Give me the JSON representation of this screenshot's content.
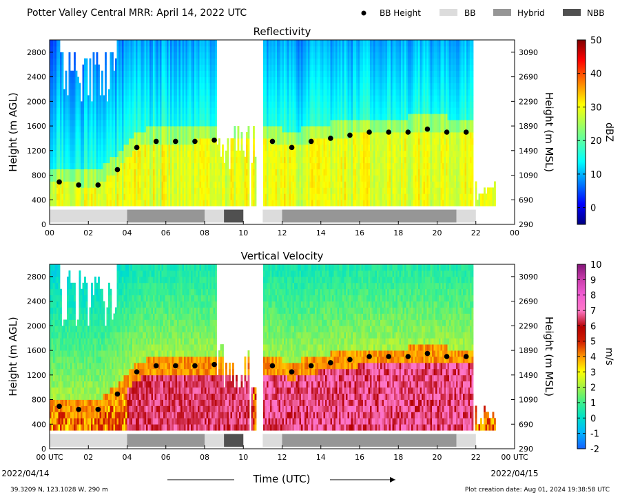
{
  "header": {
    "title": "Potter Valley Central MRR:  April 14, 2022 UTC",
    "legend": [
      {
        "label": "BB Height",
        "kind": "dot",
        "color": "#000000"
      },
      {
        "label": "BB",
        "kind": "box",
        "color": "#dcdcdc"
      },
      {
        "label": "Hybrid",
        "kind": "box",
        "color": "#969696"
      },
      {
        "label": "NBB",
        "kind": "box",
        "color": "#505050"
      }
    ]
  },
  "footer": {
    "xlabel": "Time (UTC)",
    "start_date": "2022/04/14",
    "end_date": "2022/04/15",
    "location": "39.3209 N, 123.1028 W, 290 m",
    "creation": "Plot creation date: Aug 01, 2024 19:38:58 UTC"
  },
  "chart_data": [
    {
      "type": "heatmap",
      "title": "Reflectivity",
      "ylabel": "Height (m AGL)",
      "ylabel_right": "Height (m MSL)",
      "xlim": [
        0,
        24
      ],
      "ylim": [
        0,
        3000
      ],
      "x_ticks": [
        "00",
        "02",
        "04",
        "06",
        "08",
        "10",
        "12",
        "14",
        "16",
        "18",
        "20",
        "22",
        "00"
      ],
      "y_ticks": [
        0,
        400,
        800,
        1200,
        1600,
        2000,
        2400,
        2800
      ],
      "y_ticks_right": [
        290,
        690,
        1090,
        1490,
        1890,
        2290,
        2690,
        3090
      ],
      "colorbar": {
        "label": "dBZ",
        "min": -5,
        "max": 50,
        "ticks": [
          0,
          10,
          20,
          30,
          40,
          50
        ],
        "colormap": "jet"
      },
      "bb_height": {
        "x": [
          0.5,
          1.5,
          2.5,
          3.5,
          4.5,
          5.5,
          6.5,
          7.5,
          8.5,
          11.5,
          12.5,
          13.5,
          14.5,
          15.5,
          16.5,
          17.5,
          18.5,
          19.5,
          20.5,
          21.5
        ],
        "y": [
          690,
          640,
          640,
          890,
          1250,
          1350,
          1350,
          1350,
          1370,
          1350,
          1250,
          1350,
          1400,
          1450,
          1500,
          1500,
          1500,
          1550,
          1500,
          1500
        ]
      },
      "bb_type": [
        {
          "type": "BB",
          "start": 0.0,
          "end": 4.0
        },
        {
          "type": "Hybrid",
          "start": 4.0,
          "end": 8.0
        },
        {
          "type": "BB",
          "start": 8.0,
          "end": 9.0
        },
        {
          "type": "NBB",
          "start": 9.0,
          "end": 10.0
        },
        {
          "type": "BB",
          "start": 11.0,
          "end": 12.0
        },
        {
          "type": "Hybrid",
          "start": 12.0,
          "end": 21.0
        },
        {
          "type": "BB",
          "start": 21.0,
          "end": 22.0
        }
      ],
      "data_spans": [
        [
          0.0,
          10.3
        ],
        [
          10.4,
          10.7
        ],
        [
          11.0,
          21.9
        ],
        [
          22.0,
          23.0
        ]
      ]
    },
    {
      "type": "heatmap",
      "title": "Vertical Velocity",
      "ylabel": "Height (m AGL)",
      "ylabel_right": "Height (m MSL)",
      "xlim": [
        0,
        24
      ],
      "ylim": [
        0,
        3000
      ],
      "x_ticks": [
        "00 UTC",
        "02",
        "04",
        "06",
        "08",
        "10",
        "12",
        "14",
        "16",
        "18",
        "20",
        "22",
        "00 UTC"
      ],
      "y_ticks": [
        0,
        400,
        800,
        1200,
        1600,
        2000,
        2400,
        2800
      ],
      "y_ticks_right": [
        290,
        690,
        1090,
        1490,
        1890,
        2290,
        2690,
        3090
      ],
      "colorbar": {
        "label": "m/s",
        "min": -2,
        "max": 10,
        "ticks": [
          -2,
          -1,
          0,
          1,
          2,
          3,
          4,
          5,
          6,
          7,
          8,
          9,
          10
        ],
        "colormap": "velocity"
      },
      "bb_height": {
        "x": [
          0.5,
          1.5,
          2.5,
          3.5,
          4.5,
          5.5,
          6.5,
          7.5,
          8.5,
          11.5,
          12.5,
          13.5,
          14.5,
          15.5,
          16.5,
          17.5,
          18.5,
          19.5,
          20.5,
          21.5
        ],
        "y": [
          690,
          640,
          640,
          890,
          1250,
          1350,
          1350,
          1350,
          1370,
          1350,
          1250,
          1350,
          1400,
          1450,
          1500,
          1500,
          1500,
          1550,
          1500,
          1500
        ]
      },
      "bb_type": [
        {
          "type": "BB",
          "start": 0.0,
          "end": 4.0
        },
        {
          "type": "Hybrid",
          "start": 4.0,
          "end": 8.0
        },
        {
          "type": "BB",
          "start": 8.0,
          "end": 9.0
        },
        {
          "type": "NBB",
          "start": 9.0,
          "end": 10.0
        },
        {
          "type": "BB",
          "start": 11.0,
          "end": 12.0
        },
        {
          "type": "Hybrid",
          "start": 12.0,
          "end": 21.0
        },
        {
          "type": "BB",
          "start": 21.0,
          "end": 22.0
        }
      ],
      "data_spans": [
        [
          0.0,
          10.3
        ],
        [
          10.4,
          10.7
        ],
        [
          11.0,
          21.9
        ],
        [
          22.0,
          23.0
        ]
      ]
    }
  ]
}
